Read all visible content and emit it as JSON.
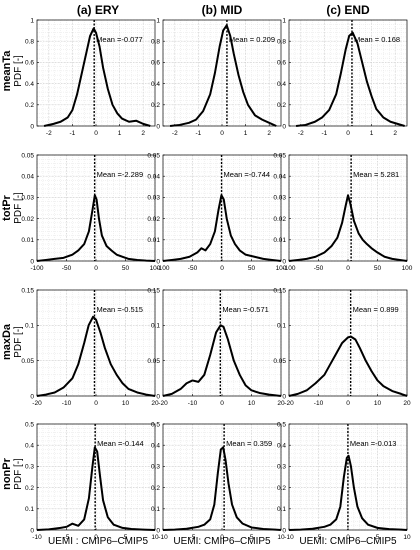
{
  "figure": {
    "column_titles": [
      "(a) ERY",
      "(b) MID",
      "(c) END"
    ],
    "row_labels": [
      "meanTa",
      "totPr",
      "maxDa",
      "nonPr"
    ],
    "ylabel": "PDF [-]",
    "xlabels": [
      "UEMI : CMIP6–CMIP5",
      "UEMI: CMIP6–CMIP5",
      "UEMI: CMIP6–CMIP5"
    ]
  },
  "chart_data": [
    {
      "type": "line",
      "row": "meanTa",
      "col": "ERY",
      "xlim": [
        -2.5,
        2.5
      ],
      "ylim": [
        0,
        1
      ],
      "xticks": [
        -2,
        -1,
        0,
        1,
        2
      ],
      "yticks": [
        0,
        0.2,
        0.4,
        0.6,
        0.8,
        1
      ],
      "grid": true,
      "mean_label": "Mean =-0.077",
      "mean": -0.077,
      "x": [
        -2.2,
        -1.8,
        -1.5,
        -1.2,
        -1.0,
        -0.8,
        -0.6,
        -0.4,
        -0.25,
        -0.1,
        0.0,
        0.15,
        0.3,
        0.5,
        0.7,
        0.9,
        1.1,
        1.4,
        1.7,
        2.0,
        2.3
      ],
      "y": [
        0.0,
        0.02,
        0.04,
        0.08,
        0.15,
        0.3,
        0.5,
        0.7,
        0.85,
        0.92,
        0.88,
        0.75,
        0.55,
        0.35,
        0.2,
        0.12,
        0.07,
        0.04,
        0.05,
        0.02,
        0.0
      ]
    },
    {
      "type": "line",
      "row": "meanTa",
      "col": "MID",
      "xlim": [
        -2.5,
        2.5
      ],
      "ylim": [
        0,
        1
      ],
      "xticks": [
        -2,
        -1,
        0,
        1,
        2
      ],
      "yticks": [
        0,
        0.2,
        0.4,
        0.6,
        0.8,
        1
      ],
      "grid": true,
      "mean_label": "Mean = 0.209",
      "mean": 0.209,
      "x": [
        -2.2,
        -1.8,
        -1.4,
        -1.1,
        -0.8,
        -0.5,
        -0.3,
        -0.1,
        0.05,
        0.2,
        0.35,
        0.5,
        0.7,
        0.9,
        1.1,
        1.4,
        1.7,
        2.0,
        2.3
      ],
      "y": [
        0.0,
        0.01,
        0.03,
        0.06,
        0.14,
        0.3,
        0.5,
        0.75,
        0.9,
        0.95,
        0.85,
        0.68,
        0.48,
        0.32,
        0.2,
        0.1,
        0.06,
        0.03,
        0.0
      ]
    },
    {
      "type": "line",
      "row": "meanTa",
      "col": "END",
      "xlim": [
        -2.5,
        2.5
      ],
      "ylim": [
        0,
        1
      ],
      "xticks": [
        -2,
        -1,
        0,
        1,
        2
      ],
      "yticks": [
        0,
        0.2,
        0.4,
        0.6,
        0.8,
        1
      ],
      "grid": true,
      "mean_label": "Mean = 0.168",
      "mean": 0.168,
      "x": [
        -2.2,
        -1.8,
        -1.4,
        -1.1,
        -0.8,
        -0.5,
        -0.3,
        -0.1,
        0.05,
        0.2,
        0.4,
        0.6,
        0.8,
        1.0,
        1.2,
        1.5,
        1.8,
        2.1,
        2.4
      ],
      "y": [
        0.0,
        0.01,
        0.04,
        0.08,
        0.15,
        0.3,
        0.5,
        0.72,
        0.85,
        0.88,
        0.78,
        0.6,
        0.42,
        0.28,
        0.16,
        0.08,
        0.04,
        0.02,
        0.0
      ]
    },
    {
      "type": "line",
      "row": "totPr",
      "col": "ERY",
      "xlim": [
        -100,
        100
      ],
      "ylim": [
        0,
        0.05
      ],
      "xticks": [
        -100,
        -50,
        0,
        50,
        100
      ],
      "yticks": [
        0,
        0.01,
        0.02,
        0.03,
        0.04,
        0.05
      ],
      "grid": true,
      "mean_label": "Mean =-2.289",
      "mean": -2.289,
      "x": [
        -100,
        -85,
        -70,
        -55,
        -40,
        -30,
        -20,
        -12,
        -6,
        -2,
        1,
        5,
        10,
        18,
        26,
        35,
        45,
        55,
        70,
        85,
        100
      ],
      "y": [
        0.0,
        0.0005,
        0.001,
        0.0015,
        0.003,
        0.005,
        0.008,
        0.014,
        0.024,
        0.031,
        0.029,
        0.02,
        0.012,
        0.007,
        0.005,
        0.003,
        0.002,
        0.001,
        0.0005,
        0.0002,
        0.0
      ]
    },
    {
      "type": "line",
      "row": "totPr",
      "col": "MID",
      "xlim": [
        -100,
        100
      ],
      "ylim": [
        0,
        0.05
      ],
      "xticks": [
        -100,
        -50,
        0,
        50,
        100
      ],
      "yticks": [
        0,
        0.01,
        0.02,
        0.03,
        0.04,
        0.05
      ],
      "grid": true,
      "mean_label": "Mean =-0.744",
      "mean": -0.744,
      "x": [
        -100,
        -85,
        -70,
        -55,
        -42,
        -35,
        -28,
        -20,
        -12,
        -6,
        -1,
        3,
        8,
        15,
        22,
        30,
        40,
        55,
        70,
        85,
        100
      ],
      "y": [
        0.0,
        0.0005,
        0.001,
        0.002,
        0.004,
        0.006,
        0.005,
        0.008,
        0.014,
        0.024,
        0.031,
        0.029,
        0.02,
        0.012,
        0.008,
        0.005,
        0.003,
        0.002,
        0.001,
        0.0005,
        0.0
      ]
    },
    {
      "type": "line",
      "row": "totPr",
      "col": "END",
      "xlim": [
        -100,
        100
      ],
      "ylim": [
        0,
        0.05
      ],
      "xticks": [
        -100,
        -50,
        0,
        50,
        100
      ],
      "yticks": [
        0,
        0.01,
        0.02,
        0.03,
        0.04,
        0.05
      ],
      "grid": true,
      "mean_label": "Mean = 5.281",
      "mean": 5.281,
      "x": [
        -100,
        -85,
        -70,
        -55,
        -40,
        -28,
        -18,
        -10,
        -4,
        0,
        4,
        10,
        18,
        25,
        32,
        40,
        50,
        62,
        75,
        88,
        100
      ],
      "y": [
        0.0,
        0.0005,
        0.001,
        0.002,
        0.004,
        0.007,
        0.011,
        0.018,
        0.026,
        0.031,
        0.027,
        0.019,
        0.013,
        0.01,
        0.008,
        0.006,
        0.004,
        0.002,
        0.001,
        0.0005,
        0.0
      ]
    },
    {
      "type": "line",
      "row": "maxDa",
      "col": "ERY",
      "xlim": [
        -20,
        20
      ],
      "ylim": [
        0,
        0.15
      ],
      "xticks": [
        -20,
        -10,
        0,
        10,
        20
      ],
      "yticks": [
        0,
        0.05,
        0.1,
        0.15
      ],
      "grid": true,
      "mean_label": "Mean =-0.515",
      "mean": -0.515,
      "x": [
        -20,
        -17,
        -14,
        -11,
        -8,
        -6,
        -4,
        -2.5,
        -1,
        0,
        1.5,
        3,
        5,
        7,
        9,
        11,
        14,
        17,
        20
      ],
      "y": [
        0.0,
        0.002,
        0.005,
        0.012,
        0.025,
        0.045,
        0.075,
        0.1,
        0.112,
        0.108,
        0.09,
        0.068,
        0.045,
        0.03,
        0.018,
        0.01,
        0.005,
        0.002,
        0.0
      ]
    },
    {
      "type": "line",
      "row": "maxDa",
      "col": "MID",
      "xlim": [
        -20,
        20
      ],
      "ylim": [
        0,
        0.15
      ],
      "xticks": [
        -20,
        -10,
        0,
        10,
        20
      ],
      "yticks": [
        0,
        0.05,
        0.1,
        0.15
      ],
      "grid": true,
      "mean_label": "Mean =-0.571",
      "mean": -0.571,
      "x": [
        -20,
        -17,
        -14,
        -12,
        -10,
        -8,
        -6,
        -4,
        -2,
        -0.5,
        0.5,
        2,
        4,
        6,
        8,
        10,
        13,
        16,
        20
      ],
      "y": [
        0.0,
        0.003,
        0.01,
        0.018,
        0.022,
        0.02,
        0.03,
        0.058,
        0.09,
        0.1,
        0.098,
        0.08,
        0.05,
        0.03,
        0.015,
        0.008,
        0.004,
        0.002,
        0.0
      ]
    },
    {
      "type": "line",
      "row": "maxDa",
      "col": "END",
      "xlim": [
        -20,
        20
      ],
      "ylim": [
        0,
        0.15
      ],
      "xticks": [
        -20,
        -10,
        0,
        10,
        20
      ],
      "yticks": [
        0,
        0.05,
        0.1,
        0.15
      ],
      "grid": true,
      "mean_label": "Mean = 0.899",
      "mean": 0.899,
      "x": [
        -20,
        -17,
        -14,
        -11,
        -8,
        -6,
        -4,
        -2,
        0,
        1,
        2.5,
        4,
        6,
        8,
        10,
        12,
        15,
        18,
        20
      ],
      "y": [
        0.0,
        0.003,
        0.008,
        0.018,
        0.03,
        0.045,
        0.06,
        0.075,
        0.083,
        0.084,
        0.08,
        0.068,
        0.05,
        0.035,
        0.022,
        0.014,
        0.007,
        0.003,
        0.0
      ]
    },
    {
      "type": "line",
      "row": "nonPr",
      "col": "ERY",
      "xlim": [
        -10,
        10
      ],
      "ylim": [
        0,
        0.5
      ],
      "xticks": [
        -10,
        -5,
        0,
        5,
        10
      ],
      "yticks": [
        0,
        0.1,
        0.2,
        0.3,
        0.4,
        0.5
      ],
      "grid": true,
      "mean_label": "Mean =-0.144",
      "mean": -0.144,
      "x": [
        -10,
        -8,
        -6,
        -5,
        -4,
        -3,
        -2,
        -1.2,
        -0.6,
        -0.2,
        0.2,
        0.7,
        1.2,
        2,
        3,
        4.5,
        6,
        8,
        10
      ],
      "y": [
        0.0,
        0.003,
        0.01,
        0.015,
        0.03,
        0.02,
        0.05,
        0.15,
        0.3,
        0.39,
        0.37,
        0.25,
        0.14,
        0.06,
        0.025,
        0.01,
        0.005,
        0.002,
        0.0
      ]
    },
    {
      "type": "line",
      "row": "nonPr",
      "col": "MID",
      "xlim": [
        -10,
        10
      ],
      "ylim": [
        0,
        0.5
      ],
      "xticks": [
        -10,
        -5,
        0,
        5,
        10
      ],
      "yticks": [
        0,
        0.1,
        0.2,
        0.3,
        0.4,
        0.5
      ],
      "grid": true,
      "mean_label": "Mean = 0.359",
      "mean": 0.359,
      "x": [
        -10,
        -8,
        -6,
        -4,
        -3,
        -2,
        -1.3,
        -0.7,
        -0.2,
        0.2,
        0.6,
        1.1,
        1.7,
        2.5,
        3.5,
        5,
        7,
        9,
        10
      ],
      "y": [
        0.0,
        0.002,
        0.006,
        0.015,
        0.025,
        0.05,
        0.12,
        0.27,
        0.38,
        0.39,
        0.33,
        0.22,
        0.12,
        0.06,
        0.03,
        0.012,
        0.005,
        0.002,
        0.0
      ]
    },
    {
      "type": "line",
      "row": "nonPr",
      "col": "END",
      "xlim": [
        -10,
        10
      ],
      "ylim": [
        0,
        0.5
      ],
      "xticks": [
        -10,
        -5,
        0,
        5,
        10
      ],
      "yticks": [
        0,
        0.1,
        0.2,
        0.3,
        0.4,
        0.5
      ],
      "grid": true,
      "mean_label": "Mean =-0.013",
      "mean": -0.013,
      "x": [
        -10,
        -8,
        -6,
        -4,
        -3,
        -2,
        -1.3,
        -0.7,
        -0.2,
        0.1,
        0.5,
        1,
        1.6,
        2.4,
        3.4,
        5,
        7,
        9,
        10
      ],
      "y": [
        0.0,
        0.002,
        0.006,
        0.015,
        0.025,
        0.05,
        0.11,
        0.25,
        0.34,
        0.35,
        0.3,
        0.2,
        0.11,
        0.055,
        0.025,
        0.01,
        0.004,
        0.002,
        0.0
      ]
    }
  ]
}
